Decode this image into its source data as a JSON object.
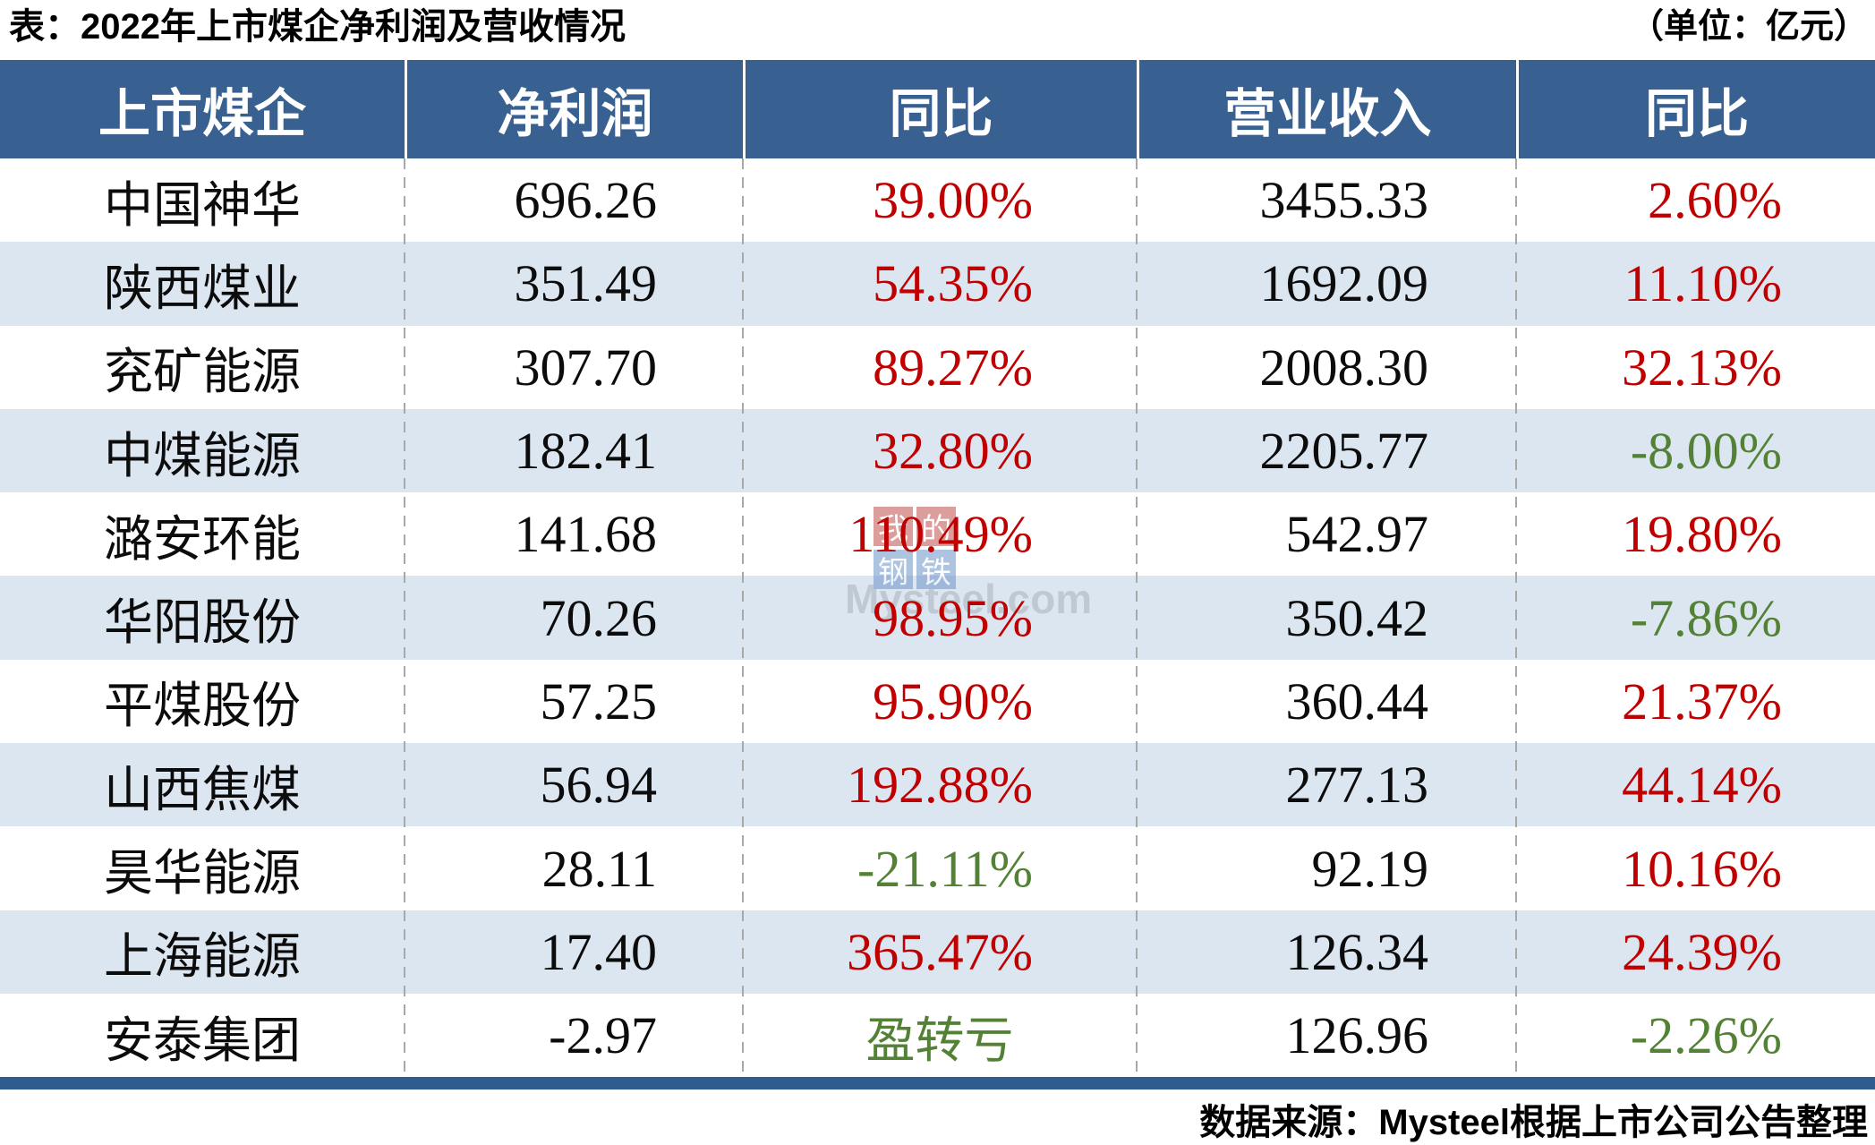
{
  "page": {
    "title": "表：2022年上市煤企净利润及营收情况",
    "unit_note": "（单位：亿元）",
    "source_note": "数据来源：Mysteel根据上市公司公告整理"
  },
  "watermark": {
    "squares": [
      "我",
      "的",
      "钢",
      "铁"
    ],
    "brand": "Mysteel.com"
  },
  "colors": {
    "header_bg": "#386191",
    "alt_row_bg": "#dce6f1",
    "bottom_bar": "#2f5c8f",
    "increase_red": "#c00000",
    "decrease_green": "#538135"
  },
  "chart_data": {
    "type": "table",
    "title": "2022年上市煤企净利润及营收情况",
    "unit": "亿元",
    "columns": [
      "上市煤企",
      "净利润",
      "同比",
      "营业收入",
      "同比"
    ],
    "rows": [
      {
        "company": "中国神华",
        "net_profit": "696.26",
        "net_profit_yoy": "39.00%",
        "net_profit_yoy_trend": "up",
        "revenue": "3455.33",
        "revenue_yoy": "2.60%",
        "revenue_yoy_trend": "up"
      },
      {
        "company": "陕西煤业",
        "net_profit": "351.49",
        "net_profit_yoy": "54.35%",
        "net_profit_yoy_trend": "up",
        "revenue": "1692.09",
        "revenue_yoy": "11.10%",
        "revenue_yoy_trend": "up"
      },
      {
        "company": "兖矿能源",
        "net_profit": "307.70",
        "net_profit_yoy": "89.27%",
        "net_profit_yoy_trend": "up",
        "revenue": "2008.30",
        "revenue_yoy": "32.13%",
        "revenue_yoy_trend": "up"
      },
      {
        "company": "中煤能源",
        "net_profit": "182.41",
        "net_profit_yoy": "32.80%",
        "net_profit_yoy_trend": "up",
        "revenue": "2205.77",
        "revenue_yoy": "-8.00%",
        "revenue_yoy_trend": "down"
      },
      {
        "company": "潞安环能",
        "net_profit": "141.68",
        "net_profit_yoy": "110.49%",
        "net_profit_yoy_trend": "up",
        "revenue": "542.97",
        "revenue_yoy": "19.80%",
        "revenue_yoy_trend": "up"
      },
      {
        "company": "华阳股份",
        "net_profit": "70.26",
        "net_profit_yoy": "98.95%",
        "net_profit_yoy_trend": "up",
        "revenue": "350.42",
        "revenue_yoy": "-7.86%",
        "revenue_yoy_trend": "down"
      },
      {
        "company": "平煤股份",
        "net_profit": "57.25",
        "net_profit_yoy": "95.90%",
        "net_profit_yoy_trend": "up",
        "revenue": "360.44",
        "revenue_yoy": "21.37%",
        "revenue_yoy_trend": "up"
      },
      {
        "company": "山西焦煤",
        "net_profit": "56.94",
        "net_profit_yoy": "192.88%",
        "net_profit_yoy_trend": "up",
        "revenue": "277.13",
        "revenue_yoy": "44.14%",
        "revenue_yoy_trend": "up"
      },
      {
        "company": "昊华能源",
        "net_profit": "28.11",
        "net_profit_yoy": "-21.11%",
        "net_profit_yoy_trend": "down",
        "revenue": "92.19",
        "revenue_yoy": "10.16%",
        "revenue_yoy_trend": "up"
      },
      {
        "company": "上海能源",
        "net_profit": "17.40",
        "net_profit_yoy": "365.47%",
        "net_profit_yoy_trend": "up",
        "revenue": "126.34",
        "revenue_yoy": "24.39%",
        "revenue_yoy_trend": "up"
      },
      {
        "company": "安泰集团",
        "net_profit": "-2.97",
        "net_profit_yoy": "盈转亏",
        "net_profit_yoy_trend": "down",
        "revenue": "126.96",
        "revenue_yoy": "-2.26%",
        "revenue_yoy_trend": "down"
      }
    ]
  }
}
